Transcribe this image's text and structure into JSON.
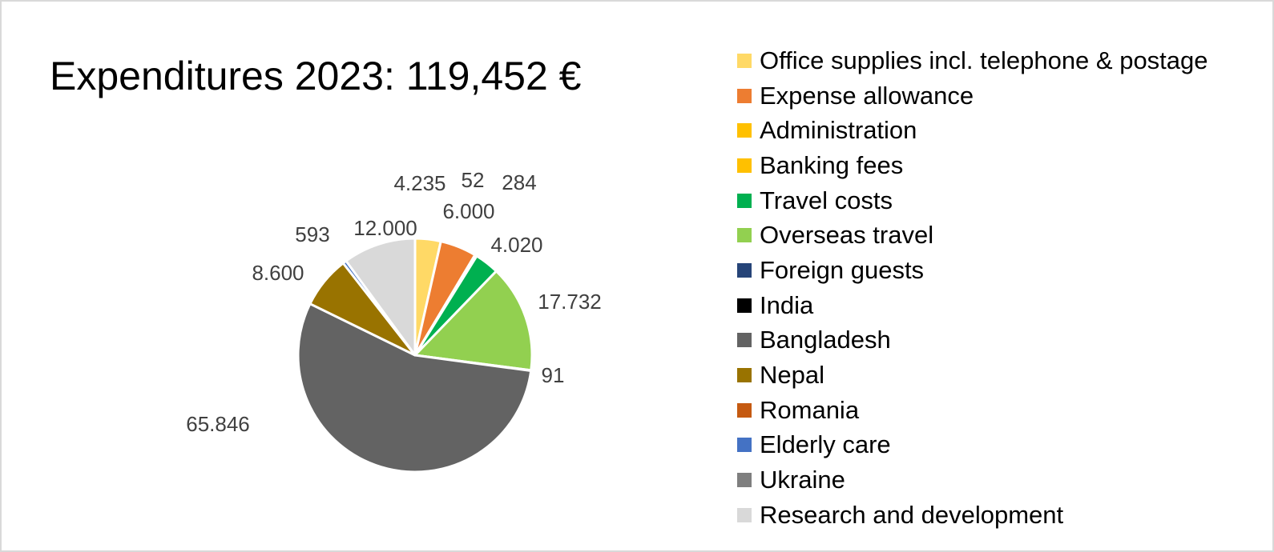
{
  "chart_data": {
    "type": "pie",
    "title": "Expenditures 2023: 119,452 €",
    "legend_position": "right",
    "slices": [
      {
        "label": "Office supplies incl. telephone & postage",
        "value": 4235,
        "display": "4.235",
        "color": "#ffd966"
      },
      {
        "label": "Expense allowance",
        "value": 6000,
        "display": "6.000",
        "color": "#ed7d31"
      },
      {
        "label": "Administration",
        "value": 52,
        "display": "52",
        "color": "#ffc000"
      },
      {
        "label": "Banking fees",
        "value": 284,
        "display": "284",
        "color": "#ffc000"
      },
      {
        "label": "Travel costs",
        "value": 4020,
        "display": "4.020",
        "color": "#00b050"
      },
      {
        "label": "Overseas travel",
        "value": 17732,
        "display": "17.732",
        "color": "#92d050"
      },
      {
        "label": "Foreign guests",
        "value": 91,
        "display": "91",
        "color": "#264478"
      },
      {
        "label": "India",
        "value": 0,
        "display": "",
        "color": "#000000"
      },
      {
        "label": "Bangladesh",
        "value": 65846,
        "display": "65.846",
        "color": "#636363"
      },
      {
        "label": "Nepal",
        "value": 8600,
        "display": "8.600",
        "color": "#997300"
      },
      {
        "label": "Romania",
        "value": 0,
        "display": "",
        "color": "#c55a11"
      },
      {
        "label": "Elderly care",
        "value": 593,
        "display": "593",
        "color": "#4472c4"
      },
      {
        "label": "Ukraine",
        "value": 0,
        "display": "",
        "color": "#7f7f7f"
      },
      {
        "label": "Research and development",
        "value": 12000,
        "display": "12.000",
        "color": "#d9d9d9"
      }
    ]
  }
}
